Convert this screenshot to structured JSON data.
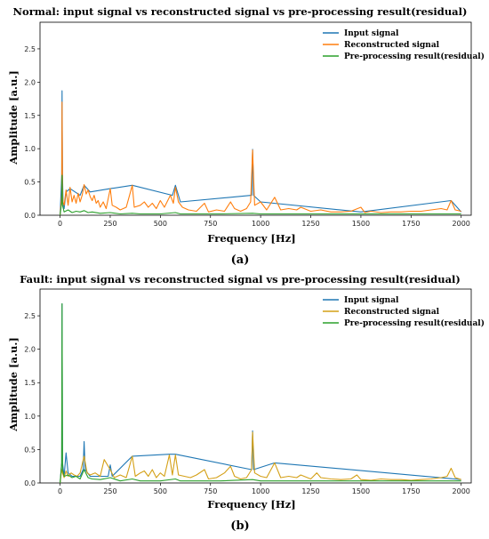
{
  "chart_data": [
    {
      "type": "line",
      "title": "Normal: input signal vs reconstructed signal vs pre-processing result(residual)",
      "xlabel": "Frequency [Hz]",
      "ylabel": "Amplitude [a.u.]",
      "caption": "(a)",
      "xlim": [
        -100,
        2050
      ],
      "ylim": [
        0,
        2.9
      ],
      "xticks": [
        0,
        250,
        500,
        750,
        1000,
        1250,
        1500,
        1750,
        2000
      ],
      "yticks": [
        0.0,
        0.5,
        1.0,
        1.5,
        2.0,
        2.5
      ],
      "xtick_labels": [
        "0",
        "250",
        "500",
        "750",
        "1000",
        "1250",
        "1500",
        "1750",
        "2000"
      ],
      "ytick_labels": [
        "0.0",
        "0.5",
        "1.0",
        "1.5",
        "2.0",
        "2.5"
      ],
      "legend": "top-right",
      "series": [
        {
          "name": "Input signal",
          "color": "#1f77b4",
          "x": [
            0,
            8,
            10,
            12,
            15,
            20,
            30,
            50,
            100,
            120,
            150,
            250,
            360,
            560,
            575,
            600,
            955,
            960,
            965,
            1000,
            1500,
            1950,
            2000
          ],
          "y": [
            0.0,
            0.6,
            1.87,
            0.6,
            0.2,
            0.1,
            0.35,
            0.4,
            0.3,
            0.45,
            0.35,
            0.4,
            0.45,
            0.3,
            0.45,
            0.2,
            0.3,
            0.99,
            0.3,
            0.2,
            0.05,
            0.22,
            0.05
          ]
        },
        {
          "name": "Reconstructed signal",
          "color": "#ff7f0e",
          "x": [
            0,
            8,
            10,
            12,
            15,
            20,
            30,
            40,
            50,
            60,
            70,
            80,
            90,
            100,
            110,
            120,
            130,
            140,
            150,
            160,
            170,
            180,
            190,
            200,
            215,
            230,
            250,
            260,
            280,
            300,
            330,
            360,
            370,
            400,
            420,
            440,
            460,
            480,
            500,
            520,
            550,
            565,
            575,
            590,
            610,
            640,
            680,
            720,
            740,
            780,
            820,
            850,
            870,
            900,
            930,
            950,
            960,
            970,
            1000,
            1030,
            1070,
            1100,
            1140,
            1180,
            1200,
            1250,
            1300,
            1350,
            1400,
            1450,
            1500,
            1520,
            1550,
            1600,
            1650,
            1700,
            1750,
            1800,
            1850,
            1900,
            1930,
            1950,
            1970,
            2000
          ],
          "y": [
            0.0,
            0.3,
            1.7,
            0.3,
            0.2,
            0.15,
            0.38,
            0.15,
            0.42,
            0.2,
            0.3,
            0.18,
            0.33,
            0.2,
            0.3,
            0.46,
            0.32,
            0.38,
            0.28,
            0.22,
            0.3,
            0.18,
            0.22,
            0.12,
            0.2,
            0.1,
            0.4,
            0.15,
            0.12,
            0.08,
            0.12,
            0.45,
            0.12,
            0.15,
            0.2,
            0.12,
            0.18,
            0.1,
            0.22,
            0.12,
            0.3,
            0.18,
            0.42,
            0.2,
            0.12,
            0.08,
            0.06,
            0.18,
            0.05,
            0.08,
            0.06,
            0.2,
            0.1,
            0.06,
            0.1,
            0.2,
            0.98,
            0.15,
            0.2,
            0.08,
            0.27,
            0.08,
            0.1,
            0.08,
            0.12,
            0.06,
            0.08,
            0.05,
            0.05,
            0.06,
            0.12,
            0.04,
            0.06,
            0.04,
            0.05,
            0.05,
            0.06,
            0.06,
            0.08,
            0.1,
            0.08,
            0.22,
            0.08,
            0.06
          ]
        },
        {
          "name": "Pre-processing result(residual)",
          "color": "#2ca02c",
          "x": [
            0,
            8,
            10,
            12,
            20,
            40,
            60,
            80,
            100,
            120,
            140,
            160,
            200,
            250,
            300,
            360,
            400,
            500,
            575,
            600,
            700,
            800,
            960,
            1000,
            1200,
            1500,
            1800,
            2000
          ],
          "y": [
            0.0,
            0.2,
            0.6,
            0.15,
            0.05,
            0.08,
            0.04,
            0.06,
            0.05,
            0.07,
            0.04,
            0.05,
            0.03,
            0.04,
            0.02,
            0.03,
            0.02,
            0.02,
            0.04,
            0.02,
            0.02,
            0.02,
            0.03,
            0.02,
            0.02,
            0.02,
            0.02,
            0.02
          ]
        }
      ]
    },
    {
      "type": "line",
      "title": "Fault: input signal vs reconstructed signal vs pre-processing result(residual)",
      "xlabel": "Frequency [Hz]",
      "ylabel": "Amplitude [a.u.]",
      "caption": "(b)",
      "xlim": [
        -100,
        2050
      ],
      "ylim": [
        0,
        2.9
      ],
      "xticks": [
        0,
        250,
        500,
        750,
        1000,
        1250,
        1500,
        1750,
        2000
      ],
      "yticks": [
        0.0,
        0.5,
        1.0,
        1.5,
        2.0,
        2.5
      ],
      "xtick_labels": [
        "0",
        "250",
        "500",
        "750",
        "1000",
        "1250",
        "1500",
        "1750",
        "2000"
      ],
      "ytick_labels": [
        "0.0",
        "0.5",
        "1.0",
        "1.5",
        "2.0",
        "2.5"
      ],
      "legend": "top-right",
      "series": [
        {
          "name": "Input signal",
          "color": "#1f77b4",
          "x": [
            0,
            8,
            10,
            12,
            20,
            30,
            40,
            60,
            100,
            115,
            120,
            125,
            150,
            240,
            250,
            260,
            360,
            545,
            575,
            955,
            960,
            965,
            1070,
            2000
          ],
          "y": [
            0.0,
            0.3,
            2.68,
            0.3,
            0.1,
            0.45,
            0.15,
            0.1,
            0.1,
            0.2,
            0.62,
            0.2,
            0.1,
            0.1,
            0.27,
            0.1,
            0.4,
            0.43,
            0.43,
            0.2,
            0.78,
            0.2,
            0.3,
            0.05
          ]
        },
        {
          "name": "Reconstructed signal",
          "color": "#d4a017",
          "x": [
            0,
            8,
            10,
            12,
            20,
            30,
            40,
            55,
            70,
            85,
            100,
            120,
            135,
            150,
            175,
            200,
            220,
            250,
            270,
            300,
            330,
            360,
            375,
            400,
            420,
            440,
            460,
            480,
            500,
            520,
            545,
            560,
            575,
            590,
            620,
            650,
            680,
            720,
            740,
            780,
            820,
            850,
            870,
            900,
            930,
            955,
            960,
            970,
            1000,
            1030,
            1070,
            1100,
            1140,
            1180,
            1200,
            1250,
            1280,
            1300,
            1350,
            1400,
            1450,
            1480,
            1500,
            1550,
            1600,
            1650,
            1700,
            1750,
            1800,
            1850,
            1900,
            1930,
            1950,
            1970,
            2000
          ],
          "y": [
            0.0,
            0.2,
            0.2,
            0.15,
            0.08,
            0.18,
            0.1,
            0.15,
            0.12,
            0.1,
            0.15,
            0.4,
            0.15,
            0.12,
            0.15,
            0.1,
            0.35,
            0.2,
            0.08,
            0.12,
            0.08,
            0.4,
            0.1,
            0.15,
            0.18,
            0.1,
            0.2,
            0.08,
            0.15,
            0.1,
            0.42,
            0.12,
            0.42,
            0.12,
            0.1,
            0.08,
            0.12,
            0.2,
            0.06,
            0.08,
            0.15,
            0.25,
            0.1,
            0.06,
            0.08,
            0.2,
            0.76,
            0.15,
            0.1,
            0.08,
            0.3,
            0.08,
            0.1,
            0.08,
            0.12,
            0.06,
            0.15,
            0.08,
            0.06,
            0.05,
            0.06,
            0.12,
            0.05,
            0.04,
            0.06,
            0.05,
            0.05,
            0.04,
            0.05,
            0.06,
            0.08,
            0.1,
            0.22,
            0.08,
            0.05
          ]
        },
        {
          "name": "Pre-processing result(residual)",
          "color": "#2ca02c",
          "x": [
            0,
            8,
            10,
            12,
            20,
            40,
            60,
            80,
            100,
            120,
            140,
            160,
            200,
            250,
            300,
            360,
            400,
            500,
            575,
            600,
            700,
            800,
            960,
            1000,
            1200,
            1500,
            1800,
            2000
          ],
          "y": [
            0.0,
            0.3,
            2.68,
            0.2,
            0.1,
            0.12,
            0.08,
            0.1,
            0.06,
            0.2,
            0.08,
            0.06,
            0.05,
            0.08,
            0.03,
            0.06,
            0.03,
            0.03,
            0.06,
            0.03,
            0.03,
            0.03,
            0.05,
            0.03,
            0.03,
            0.03,
            0.03,
            0.03
          ]
        }
      ]
    }
  ]
}
